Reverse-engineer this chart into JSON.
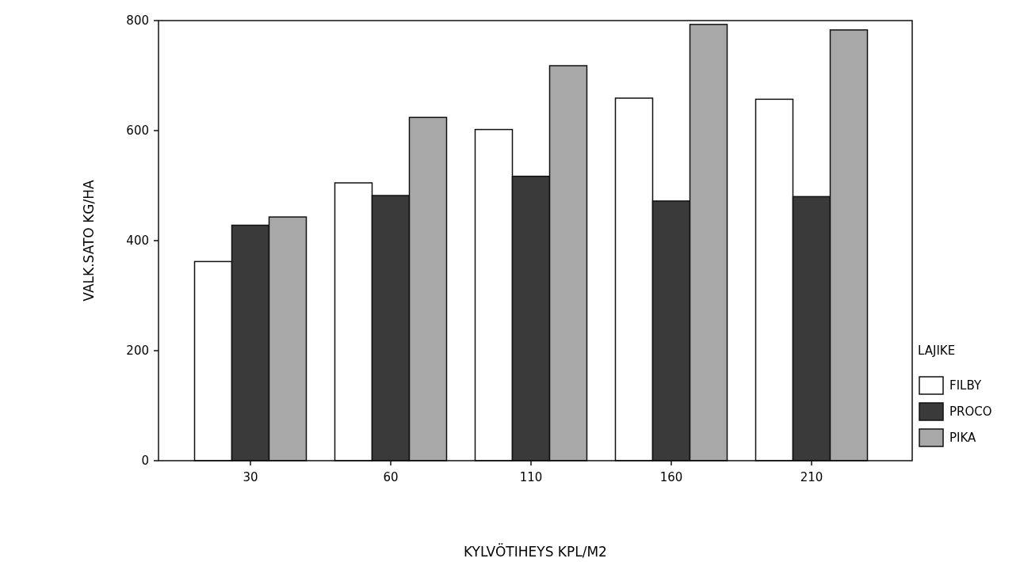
{
  "chart_data": {
    "type": "bar",
    "xlabel": "KYLVÖTIHEYS KPL/M2",
    "ylabel": "VALK.SATO KG/HA",
    "legend_title": "LAJIKE",
    "legend": "right",
    "categories": [
      "30",
      "60",
      "110",
      "160",
      "210"
    ],
    "series": [
      {
        "name": "FILBY",
        "color": "#ffffff",
        "values": [
          362,
          505,
          602,
          659,
          657
        ]
      },
      {
        "name": "PROCO",
        "color": "#3a3a3a",
        "values": [
          428,
          482,
          517,
          472,
          480
        ]
      },
      {
        "name": "PIKA",
        "color": "#a8a8a8",
        "values": [
          443,
          624,
          718,
          793,
          783
        ]
      }
    ],
    "ylim": [
      0,
      800
    ],
    "yticks": [
      0,
      200,
      400,
      600,
      800
    ],
    "grid": false
  }
}
